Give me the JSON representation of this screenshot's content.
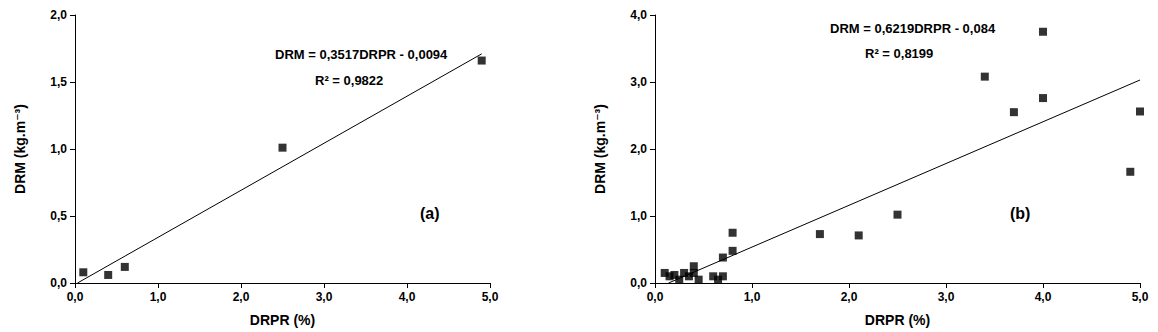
{
  "chart_data": [
    {
      "type": "scatter",
      "x_label": "DRPR (%)",
      "y_label": "DRM (kg.m⁻³)",
      "annotations": [
        "DRM = 0,3517DRPR - 0,0094",
        "R² = 0,9822",
        "(a)"
      ],
      "x": [
        0.1,
        0.4,
        0.6,
        2.5,
        4.9
      ],
      "y": [
        0.08,
        0.06,
        0.12,
        1.01,
        1.66
      ],
      "fit_line": {
        "x": [
          0.03,
          4.9
        ],
        "y": [
          0.0,
          1.71
        ]
      },
      "xlim": [
        0,
        5
      ],
      "ylim": [
        0,
        2
      ],
      "xticks": [
        {
          "value": 0,
          "label": "0,0"
        },
        {
          "value": 1,
          "label": "1,0"
        },
        {
          "value": 2,
          "label": "2,0"
        },
        {
          "value": 3,
          "label": "3,0"
        },
        {
          "value": 4,
          "label": "4,0"
        },
        {
          "value": 5,
          "label": "5,0"
        }
      ],
      "yticks": [
        {
          "value": 0,
          "label": "0,0"
        },
        {
          "value": 0.5,
          "label": "0,5"
        },
        {
          "value": 1,
          "label": "1,0"
        },
        {
          "value": 1.5,
          "label": "1,5"
        },
        {
          "value": 2,
          "label": "2,0"
        }
      ],
      "color": "#000000",
      "marker": "square",
      "grid": false
    },
    {
      "type": "scatter",
      "x_label": "DRPR (%)",
      "y_label": "DRM (kg.m⁻³)",
      "annotations": [
        "DRM = 0,6219DRPR - 0,084",
        "R² = 0,8199",
        "(b)"
      ],
      "x": [
        0.1,
        0.15,
        0.2,
        0.25,
        0.3,
        0.35,
        0.4,
        0.4,
        0.45,
        0.6,
        0.65,
        0.7,
        0.7,
        0.8,
        0.8,
        1.7,
        2.1,
        2.5,
        3.4,
        3.7,
        4.0,
        4.0,
        4.9,
        5.0
      ],
      "y": [
        0.15,
        0.1,
        0.12,
        0.05,
        0.15,
        0.1,
        0.25,
        0.15,
        0.05,
        0.1,
        0.05,
        0.1,
        0.38,
        0.48,
        0.75,
        0.73,
        0.71,
        1.02,
        3.08,
        2.55,
        3.75,
        2.76,
        1.66,
        2.56
      ],
      "fit_line": {
        "x": [
          0.14,
          5.0
        ],
        "y": [
          0.0,
          3.03
        ]
      },
      "xlim": [
        0,
        5
      ],
      "ylim": [
        0,
        4
      ],
      "xticks": [
        {
          "value": 0,
          "label": "0,0"
        },
        {
          "value": 1,
          "label": "1,0"
        },
        {
          "value": 2,
          "label": "2,0"
        },
        {
          "value": 3,
          "label": "3,0"
        },
        {
          "value": 4,
          "label": "4,0"
        },
        {
          "value": 5,
          "label": "5,0"
        }
      ],
      "yticks": [
        {
          "value": 0,
          "label": "0,0"
        },
        {
          "value": 1,
          "label": "1,0"
        },
        {
          "value": 2,
          "label": "2,0"
        },
        {
          "value": 3,
          "label": "3,0"
        },
        {
          "value": 4,
          "label": "4,0"
        }
      ],
      "color": "#000000",
      "marker": "square",
      "grid": false
    }
  ]
}
